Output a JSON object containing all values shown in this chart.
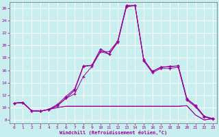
{
  "bg_color": "#c8eef0",
  "grid_color": "#ffffff",
  "line_color": "#990099",
  "marker_color": "#990099",
  "xlabel": "Windchill (Refroidissement éolien,°C)",
  "xlabel_color": "#990099",
  "tick_color": "#990099",
  "xlim": [
    -0.5,
    23.5
  ],
  "ylim": [
    7.5,
    27.0
  ],
  "yticks": [
    8,
    10,
    12,
    14,
    16,
    18,
    20,
    22,
    24,
    26
  ],
  "xticks": [
    0,
    1,
    2,
    3,
    4,
    5,
    6,
    7,
    8,
    9,
    10,
    11,
    12,
    13,
    14,
    15,
    16,
    17,
    18,
    19,
    20,
    21,
    22,
    23
  ],
  "flat1_x": [
    0,
    1,
    2,
    3,
    4,
    5,
    6,
    7,
    8,
    9,
    10,
    11,
    12,
    13,
    14,
    15,
    16,
    17,
    18,
    19,
    20,
    21,
    22,
    23
  ],
  "flat1_y": [
    10.7,
    10.8,
    9.5,
    9.4,
    9.7,
    10.0,
    10.2,
    10.2,
    10.2,
    10.2,
    10.2,
    10.2,
    10.2,
    10.2,
    10.2,
    10.2,
    10.2,
    10.2,
    10.2,
    10.2,
    10.3,
    8.8,
    8.0,
    8.2
  ],
  "flat2_x": [
    0,
    1,
    2,
    3,
    4,
    5,
    6,
    7,
    8,
    9,
    10,
    11,
    12,
    13,
    14,
    15,
    16,
    17,
    18,
    19,
    20,
    21,
    22,
    23
  ],
  "flat2_y": [
    10.7,
    10.8,
    9.5,
    9.4,
    9.7,
    10.0,
    10.2,
    10.2,
    10.2,
    10.2,
    10.2,
    10.2,
    10.2,
    10.2,
    10.2,
    10.2,
    10.2,
    10.2,
    10.2,
    10.2,
    10.3,
    8.8,
    8.0,
    8.2
  ],
  "line3_x": [
    0,
    1,
    2,
    3,
    4,
    5,
    6,
    7,
    8,
    9,
    10,
    11,
    12,
    13,
    14,
    15,
    16,
    17,
    18,
    19,
    20,
    21,
    22,
    23
  ],
  "line3_y": [
    10.7,
    10.8,
    9.5,
    9.4,
    9.7,
    10.5,
    11.8,
    13.0,
    16.7,
    16.8,
    19.0,
    19.0,
    20.7,
    26.4,
    26.4,
    17.7,
    15.8,
    16.5,
    16.6,
    16.7,
    11.4,
    10.3,
    8.6,
    8.2
  ],
  "line4_x": [
    0,
    1,
    2,
    3,
    4,
    5,
    6,
    7,
    8,
    9,
    10,
    11,
    12,
    13,
    14,
    15,
    16,
    17,
    18,
    19,
    20,
    21,
    22,
    23
  ],
  "line4_y": [
    10.7,
    10.8,
    9.5,
    9.4,
    9.7,
    10.3,
    11.5,
    12.2,
    15.0,
    16.6,
    19.0,
    18.6,
    20.5,
    26.2,
    26.4,
    17.5,
    15.6,
    16.3,
    16.3,
    16.5,
    11.2,
    10.1,
    8.5,
    8.1
  ],
  "main_x": [
    0,
    1,
    2,
    3,
    4,
    5,
    6,
    7,
    8,
    9,
    10,
    11,
    12,
    13,
    14,
    15,
    16,
    17,
    18,
    19,
    20,
    21,
    22,
    23
  ],
  "main_y": [
    10.7,
    10.8,
    9.5,
    9.4,
    9.7,
    10.3,
    11.5,
    12.8,
    16.6,
    16.8,
    19.4,
    18.6,
    20.7,
    26.4,
    26.4,
    17.7,
    15.8,
    16.5,
    16.6,
    16.7,
    11.4,
    10.3,
    8.6,
    8.2
  ]
}
